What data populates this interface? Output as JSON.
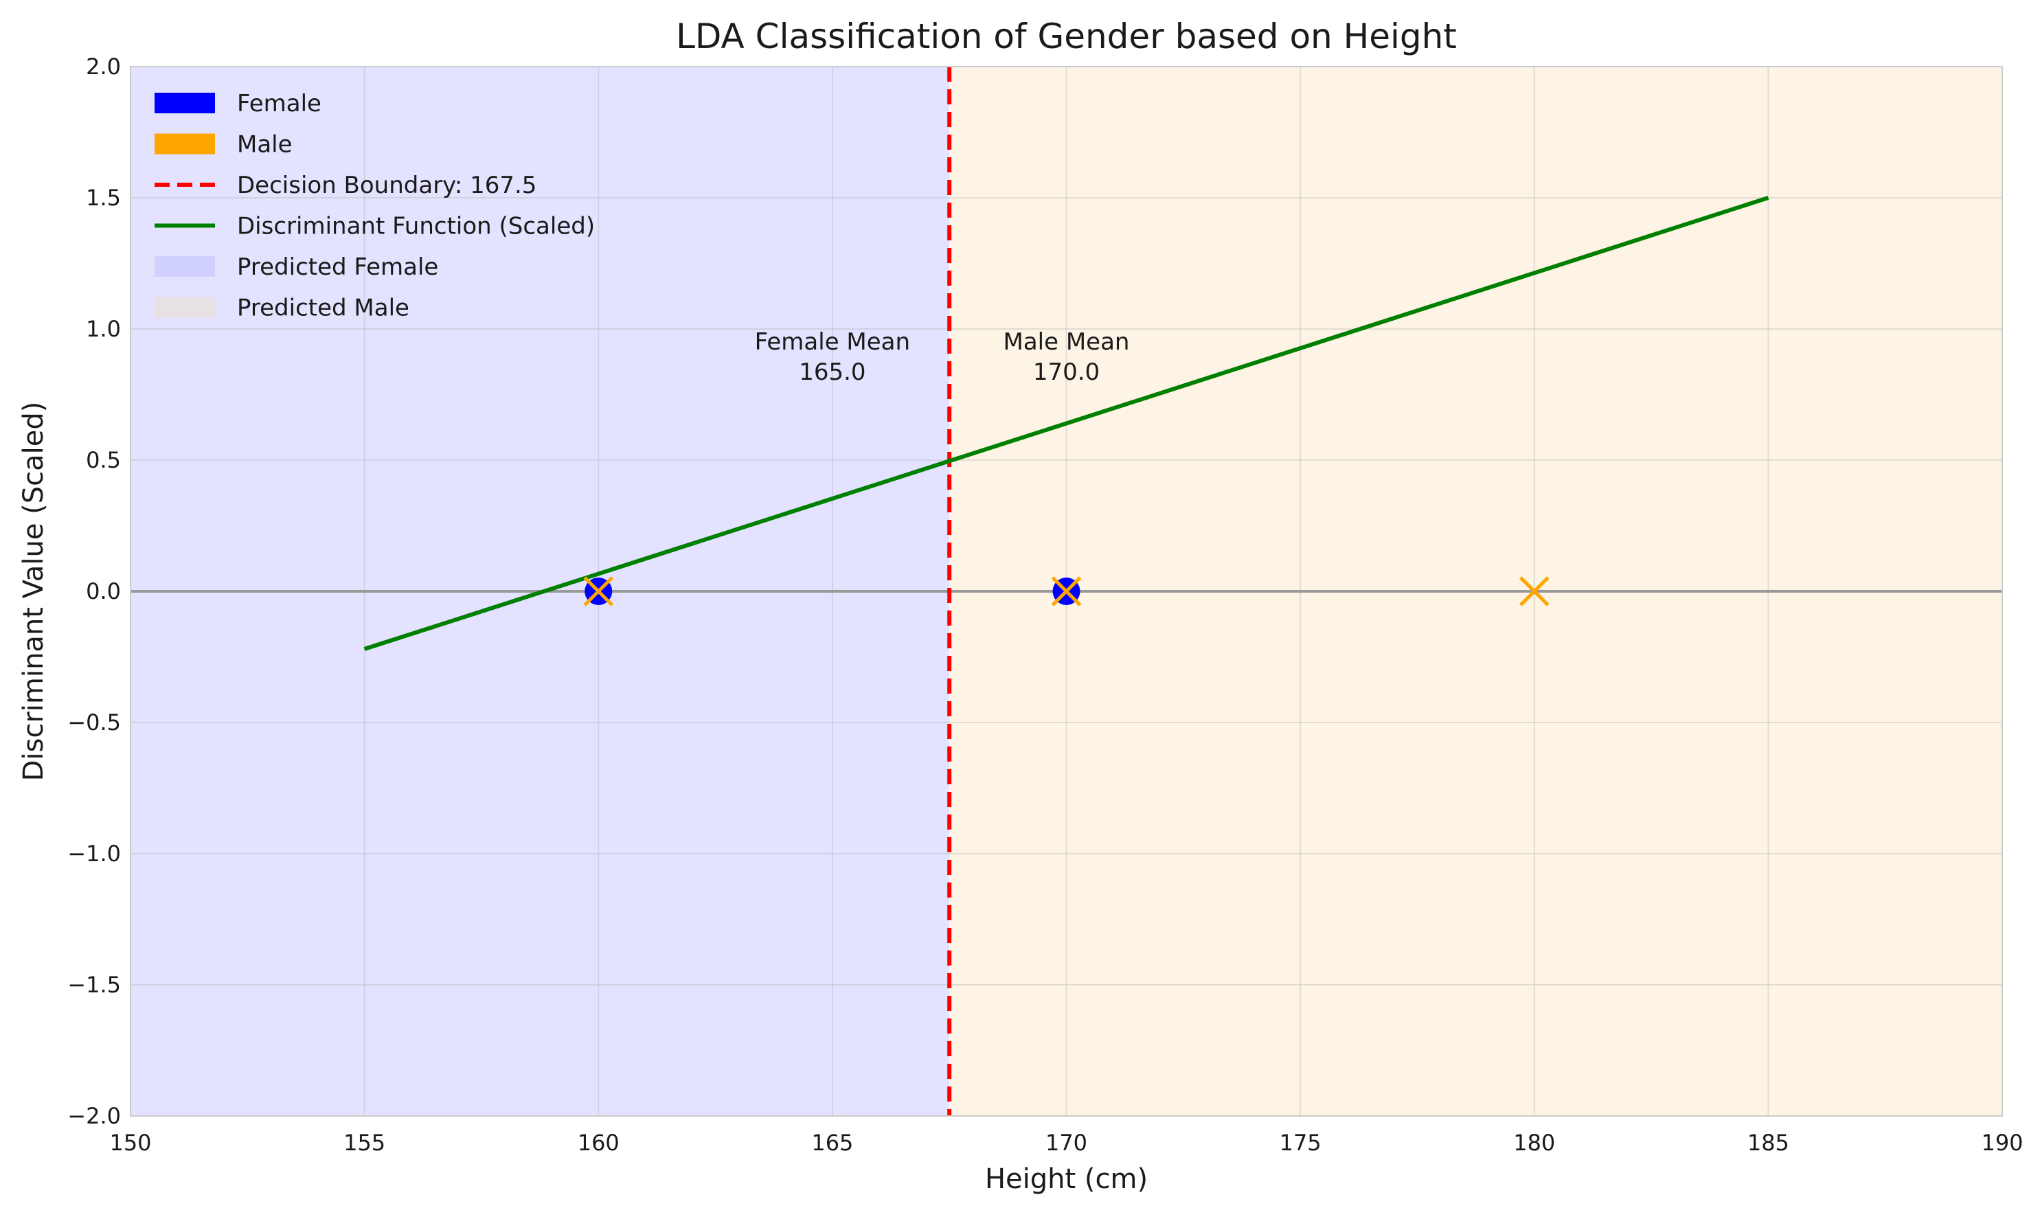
{
  "chart_data": {
    "type": "scatter",
    "title": "LDA Classification of Gender based on Height",
    "xlabel": "Height (cm)",
    "ylabel": "Discriminant Value (Scaled)",
    "xlim": [
      150,
      190
    ],
    "ylim": [
      -2.0,
      2.0
    ],
    "x_ticks": [
      150,
      155,
      160,
      165,
      170,
      175,
      180,
      185,
      190
    ],
    "x_tick_labels": [
      "150",
      "155",
      "160",
      "165",
      "170",
      "175",
      "180",
      "185",
      "190"
    ],
    "y_ticks": [
      -2.0,
      -1.5,
      -1.0,
      -0.5,
      0.0,
      0.5,
      1.0,
      1.5,
      2.0
    ],
    "y_tick_labels": [
      "−2.0",
      "−1.5",
      "−1.0",
      "−0.5",
      "0.0",
      "0.5",
      "1.0",
      "1.5",
      "2.0"
    ],
    "grid": true,
    "legend_position": "top-left",
    "decision_boundary": 167.5,
    "regions": [
      {
        "name": "Predicted Female",
        "x_from": 150,
        "x_to": 167.5,
        "color": "#e3e3ff"
      },
      {
        "name": "Predicted Male",
        "x_from": 167.5,
        "x_to": 190,
        "color": "#fdf4e5"
      }
    ],
    "series": [
      {
        "name": "Female",
        "marker": "circle",
        "color": "#0000ff",
        "points": [
          {
            "x": 160,
            "y": 0.0
          },
          {
            "x": 170,
            "y": 0.0
          }
        ]
      },
      {
        "name": "Male",
        "marker": "x",
        "color": "#ffa500",
        "points": [
          {
            "x": 160,
            "y": 0.0
          },
          {
            "x": 170,
            "y": 0.0
          },
          {
            "x": 180,
            "y": 0.0
          }
        ]
      },
      {
        "name": "Discriminant Function (Scaled)",
        "type": "line",
        "color": "#008000",
        "points": [
          {
            "x": 155,
            "y": -0.22
          },
          {
            "x": 185,
            "y": 1.5
          }
        ]
      }
    ],
    "zero_line": {
      "y": 0.0,
      "color": "#999999"
    },
    "legend": [
      {
        "label": "Female",
        "kind": "patch",
        "color": "#0000ff"
      },
      {
        "label": "Male",
        "kind": "patch",
        "color": "#ffa500"
      },
      {
        "label": "Decision Boundary: 167.5",
        "kind": "dashed-line",
        "color": "#ff0000"
      },
      {
        "label": "Discriminant Function (Scaled)",
        "kind": "line",
        "color": "#008000"
      },
      {
        "label": "Predicted Female",
        "kind": "light-patch",
        "color": "#ccccff"
      },
      {
        "label": "Predicted Male",
        "kind": "light-patch",
        "color": "#e8e0dc"
      }
    ],
    "annotations": [
      {
        "x": 165,
        "y": 0.9,
        "lines": [
          "Female Mean",
          "165.0"
        ]
      },
      {
        "x": 170,
        "y": 0.9,
        "lines": [
          "Male Mean",
          "170.0"
        ]
      }
    ]
  }
}
